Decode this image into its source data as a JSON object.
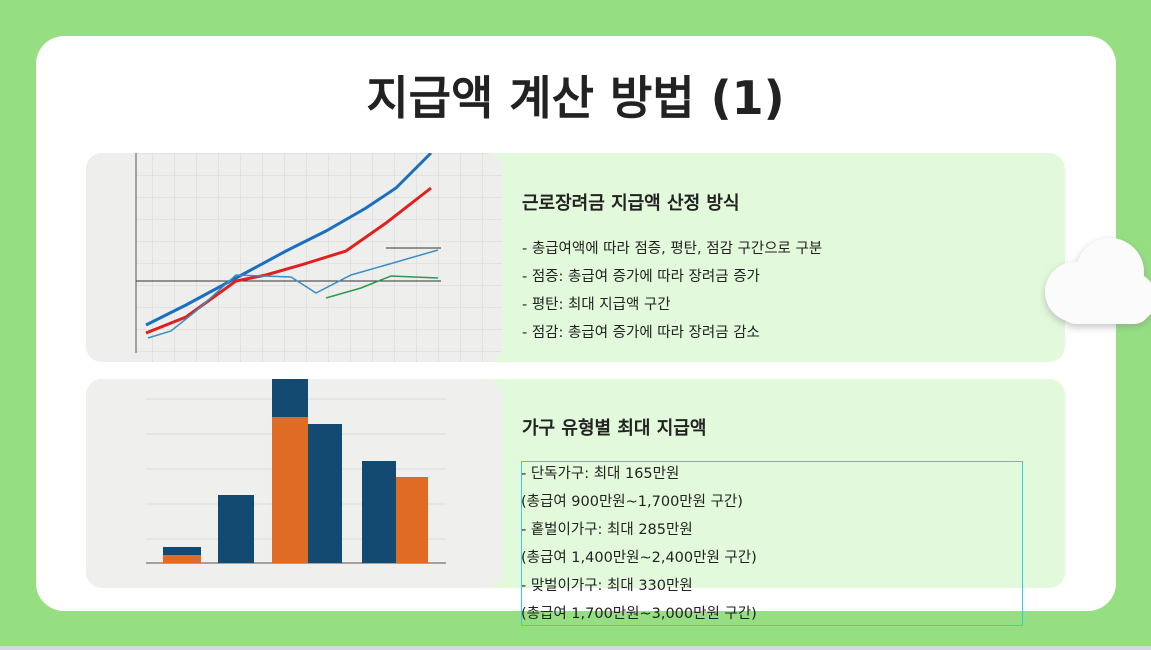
{
  "title": "지급액 계산 방법 (1)",
  "cards": [
    {
      "heading": "근로장려금 지급액 산정 방식",
      "items": [
        "- 총급여액에 따라 점증, 평탄, 점감 구간으로 구분",
        "- 점증: 총급여 증가에 따라 장려금 증가",
        "- 평탄: 최대 지급액 구간",
        "- 점감: 총급여 증가에 따라 장려금 감소"
      ]
    },
    {
      "heading": "가구 유형별 최대 지급액",
      "items": [
        "- 단독가구: 최대 165만원",
        "(총급여 900만원~1,700만원 구간)",
        "- 홑벌이가구: 최대 285만원",
        "(총급여 1,400만원~2,400만원 구간)",
        "- 맞벌이가구: 최대 330만원",
        "(총급여 1,700만원~3,000만원 구간)"
      ]
    }
  ]
}
